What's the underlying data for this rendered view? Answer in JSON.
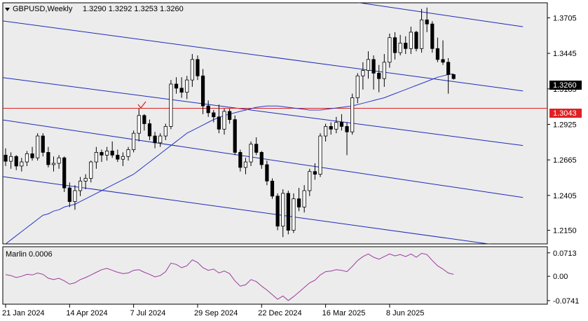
{
  "header": {
    "symbol_tf": "GBPUSD,Weekly",
    "ohlc": "1.3290 1.3292 1.3253 1.3260",
    "marker_icon": "triangle-down-icon"
  },
  "price_axis": {
    "ticks": [
      "1.3705",
      "1.3445",
      "1.3185",
      "1.2925",
      "1.2665",
      "1.2405",
      "1.2150"
    ],
    "current_price_label": "1.3260",
    "level_label": "1.3043"
  },
  "indicator": {
    "label": "Marlin 0.0006",
    "ticks": [
      "0.0713",
      "0.00",
      "-0.0741"
    ]
  },
  "time_axis": {
    "labels": [
      "21 Jan 2024",
      "14 Apr 2024",
      "7 Jul 2024",
      "29 Sep 2024",
      "22 Dec 2024",
      "16 Mar 2025",
      "8 Jun 2025"
    ]
  },
  "annotation": {
    "icon": "checkmark-icon"
  },
  "colors": {
    "background": "#ffffff",
    "plot_bg": "#ececec",
    "channel": "#1d2bb8",
    "moving_average": "#2a36c4",
    "level_line": "#e02020",
    "oscillator": "#9c3a9c",
    "candle_up": "#ffffff",
    "candle_down": "#000000"
  },
  "chart_data": {
    "type": "candlestick",
    "title": "GBPUSD,Weekly",
    "ylim": [
      1.205,
      1.3815
    ],
    "level": 1.3043,
    "last_price": 1.326,
    "x": [
      "21 Jan 2024",
      "14 Apr 2024",
      "7 Jul 2024",
      "29 Sep 2024",
      "22 Dec 2024",
      "16 Mar 2025",
      "8 Jun 2025"
    ],
    "ohlc": [
      [
        1.27,
        1.275,
        1.262,
        1.2655
      ],
      [
        1.2655,
        1.272,
        1.26,
        1.269
      ],
      [
        1.269,
        1.27,
        1.259,
        1.262
      ],
      [
        1.262,
        1.268,
        1.258,
        1.265
      ],
      [
        1.265,
        1.273,
        1.262,
        1.271
      ],
      [
        1.271,
        1.276,
        1.266,
        1.268
      ],
      [
        1.268,
        1.286,
        1.266,
        1.284
      ],
      [
        1.284,
        1.286,
        1.269,
        1.272
      ],
      [
        1.272,
        1.276,
        1.261,
        1.263
      ],
      [
        1.263,
        1.269,
        1.258,
        1.264
      ],
      [
        1.264,
        1.27,
        1.26,
        1.268
      ],
      [
        1.268,
        1.269,
        1.243,
        1.246
      ],
      [
        1.246,
        1.25,
        1.232,
        1.236
      ],
      [
        1.236,
        1.248,
        1.23,
        1.244
      ],
      [
        1.244,
        1.254,
        1.24,
        1.251
      ],
      [
        1.251,
        1.256,
        1.245,
        1.253
      ],
      [
        1.253,
        1.266,
        1.25,
        1.265
      ],
      [
        1.265,
        1.276,
        1.26,
        1.272
      ],
      [
        1.272,
        1.274,
        1.265,
        1.27
      ],
      [
        1.27,
        1.276,
        1.266,
        1.273
      ],
      [
        1.273,
        1.28,
        1.268,
        1.27
      ],
      [
        1.27,
        1.274,
        1.265,
        1.267
      ],
      [
        1.267,
        1.272,
        1.262,
        1.269
      ],
      [
        1.269,
        1.276,
        1.266,
        1.274
      ],
      [
        1.274,
        1.288,
        1.272,
        1.286
      ],
      [
        1.286,
        1.304,
        1.28,
        1.299
      ],
      [
        1.299,
        1.3,
        1.288,
        1.293
      ],
      [
        1.293,
        1.296,
        1.281,
        1.284
      ],
      [
        1.284,
        1.287,
        1.275,
        1.279
      ],
      [
        1.279,
        1.286,
        1.276,
        1.284
      ],
      [
        1.284,
        1.293,
        1.281,
        1.291
      ],
      [
        1.291,
        1.325,
        1.289,
        1.322
      ],
      [
        1.322,
        1.327,
        1.315,
        1.319
      ],
      [
        1.319,
        1.327,
        1.312,
        1.316
      ],
      [
        1.316,
        1.328,
        1.311,
        1.325
      ],
      [
        1.325,
        1.344,
        1.32,
        1.34
      ],
      [
        1.34,
        1.343,
        1.325,
        1.328
      ],
      [
        1.328,
        1.333,
        1.3,
        1.306
      ],
      [
        1.306,
        1.31,
        1.298,
        1.301
      ],
      [
        1.301,
        1.303,
        1.294,
        1.298
      ],
      [
        1.298,
        1.307,
        1.286,
        1.289
      ],
      [
        1.289,
        1.304,
        1.285,
        1.302
      ],
      [
        1.302,
        1.304,
        1.293,
        1.296
      ],
      [
        1.296,
        1.299,
        1.27,
        1.272
      ],
      [
        1.272,
        1.274,
        1.258,
        1.261
      ],
      [
        1.261,
        1.268,
        1.256,
        1.265
      ],
      [
        1.265,
        1.28,
        1.262,
        1.278
      ],
      [
        1.278,
        1.283,
        1.27,
        1.272
      ],
      [
        1.272,
        1.273,
        1.26,
        1.263
      ],
      [
        1.263,
        1.266,
        1.248,
        1.251
      ],
      [
        1.251,
        1.253,
        1.238,
        1.24
      ],
      [
        1.24,
        1.242,
        1.215,
        1.218
      ],
      [
        1.218,
        1.245,
        1.21,
        1.242
      ],
      [
        1.242,
        1.244,
        1.212,
        1.215
      ],
      [
        1.215,
        1.242,
        1.213,
        1.238
      ],
      [
        1.238,
        1.246,
        1.229,
        1.232
      ],
      [
        1.232,
        1.248,
        1.228,
        1.244
      ],
      [
        1.244,
        1.26,
        1.24,
        1.258
      ],
      [
        1.258,
        1.264,
        1.252,
        1.256
      ],
      [
        1.256,
        1.286,
        1.254,
        1.284
      ],
      [
        1.284,
        1.293,
        1.28,
        1.291
      ],
      [
        1.291,
        1.294,
        1.285,
        1.289
      ],
      [
        1.289,
        1.298,
        1.286,
        1.294
      ],
      [
        1.294,
        1.3,
        1.288,
        1.291
      ],
      [
        1.291,
        1.294,
        1.27,
        1.287
      ],
      [
        1.287,
        1.315,
        1.285,
        1.312
      ],
      [
        1.312,
        1.33,
        1.308,
        1.328
      ],
      [
        1.328,
        1.338,
        1.318,
        1.332
      ],
      [
        1.332,
        1.346,
        1.326,
        1.34
      ],
      [
        1.34,
        1.343,
        1.318,
        1.33
      ],
      [
        1.33,
        1.336,
        1.316,
        1.326
      ],
      [
        1.326,
        1.344,
        1.32,
        1.338
      ],
      [
        1.338,
        1.359,
        1.334,
        1.356
      ],
      [
        1.356,
        1.36,
        1.34,
        1.345
      ],
      [
        1.345,
        1.358,
        1.343,
        1.352
      ],
      [
        1.352,
        1.357,
        1.344,
        1.348
      ],
      [
        1.348,
        1.364,
        1.344,
        1.36
      ],
      [
        1.36,
        1.361,
        1.346,
        1.348
      ],
      [
        1.348,
        1.377,
        1.345,
        1.369
      ],
      [
        1.369,
        1.378,
        1.36,
        1.366
      ],
      [
        1.366,
        1.368,
        1.345,
        1.348
      ],
      [
        1.348,
        1.356,
        1.338,
        1.34
      ],
      [
        1.34,
        1.354,
        1.336,
        1.338
      ],
      [
        1.338,
        1.341,
        1.315,
        1.329
      ],
      [
        1.329,
        1.3292,
        1.3253,
        1.326
      ]
    ],
    "moving_average": [
      1.205,
      1.208,
      1.211,
      1.214,
      1.217,
      1.22,
      1.223,
      1.226,
      1.227,
      1.229,
      1.23,
      1.232,
      1.233,
      1.234,
      1.236,
      1.238,
      1.24,
      1.242,
      1.244,
      1.246,
      1.248,
      1.25,
      1.252,
      1.254,
      1.256,
      1.259,
      1.262,
      1.265,
      1.268,
      1.271,
      1.274,
      1.277,
      1.28,
      1.283,
      1.286,
      1.288,
      1.29,
      1.292,
      1.294,
      1.296,
      1.2975,
      1.299,
      1.3,
      1.301,
      1.302,
      1.303,
      1.304,
      1.305,
      1.3055,
      1.306,
      1.306,
      1.306,
      1.3055,
      1.305,
      1.3045,
      1.304,
      1.3035,
      1.303,
      1.303,
      1.303,
      1.3035,
      1.304,
      1.3045,
      1.305,
      1.3055,
      1.306,
      1.307,
      1.308,
      1.309,
      1.31,
      1.311,
      1.312,
      1.3135,
      1.315,
      1.3165,
      1.318,
      1.3195,
      1.321,
      1.3225,
      1.324,
      1.3255,
      1.327,
      1.328,
      1.329,
      1.3295
    ],
    "oscillator": {
      "name": "Marlin",
      "ylim": [
        -0.085,
        0.09
      ],
      "values": [
        0.005,
        0.002,
        -0.004,
        0.0,
        0.006,
        0.004,
        0.01,
        0.006,
        -0.006,
        -0.01,
        -0.006,
        -0.014,
        -0.024,
        -0.02,
        -0.01,
        -0.004,
        0.004,
        0.012,
        0.02,
        0.024,
        0.018,
        0.012,
        0.008,
        0.01,
        0.018,
        0.02,
        0.012,
        0.006,
        -0.002,
        0.002,
        0.014,
        0.04,
        0.036,
        0.026,
        0.032,
        0.05,
        0.042,
        0.026,
        0.018,
        0.022,
        0.01,
        0.016,
        0.008,
        -0.014,
        -0.03,
        -0.026,
        -0.01,
        -0.016,
        -0.03,
        -0.042,
        -0.056,
        -0.07,
        -0.06,
        -0.074,
        -0.062,
        -0.048,
        -0.034,
        -0.02,
        -0.012,
        0.004,
        0.014,
        0.016,
        0.02,
        0.018,
        0.014,
        0.03,
        0.048,
        0.06,
        0.068,
        0.058,
        0.052,
        0.06,
        0.068,
        0.062,
        0.066,
        0.06,
        0.068,
        0.058,
        0.07,
        0.066,
        0.048,
        0.032,
        0.022,
        0.01,
        0.006
      ]
    },
    "channel_lines": [
      {
        "x": [
          -1,
          97
        ],
        "y": [
          1.3685,
          1.317
        ]
      },
      {
        "x": [
          -1,
          97
        ],
        "y": [
          1.327,
          1.277
        ]
      },
      {
        "x": [
          -1,
          97
        ],
        "y": [
          1.296,
          1.239
        ]
      },
      {
        "x": [
          -1,
          97
        ],
        "y": [
          1.2545,
          1.2015
        ]
      },
      {
        "x": [
          55,
          97
        ],
        "y": [
          1.388,
          1.364
        ]
      }
    ]
  }
}
